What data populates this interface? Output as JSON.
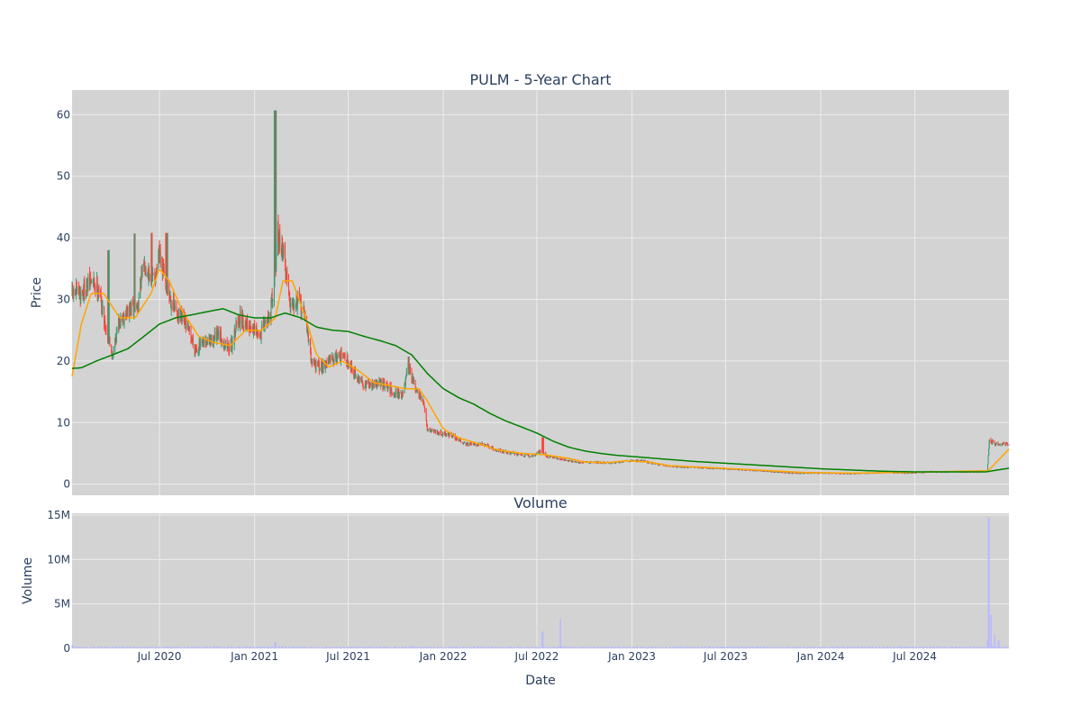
{
  "colors": {
    "plot_bg": "#d3d3d3",
    "grid": "#ececec",
    "candle_up": "#3d9970",
    "candle_down": "#ff4136",
    "ma_short": "#ffa500",
    "ma_long": "#008000",
    "volume": "#b9b9ff",
    "text": "#2a3f5f"
  },
  "chart_data": [
    {
      "type": "candlestick",
      "title": "PULM - 5-Year Chart",
      "xlabel": "",
      "ylabel": "Price",
      "xlim": [
        "2020-01-14",
        "2024-12-30"
      ],
      "ylim": [
        -1.8,
        64
      ],
      "y_ticks": [
        0,
        10,
        20,
        30,
        40,
        50,
        60
      ],
      "grid": true,
      "legend": false,
      "price_close_anchors": [
        [
          "2020-01-14",
          31
        ],
        [
          "2020-02-01",
          31
        ],
        [
          "2020-02-20",
          33
        ],
        [
          "2020-03-05",
          32
        ],
        [
          "2020-03-20",
          25
        ],
        [
          "2020-04-01",
          21
        ],
        [
          "2020-04-15",
          27
        ],
        [
          "2020-05-01",
          28
        ],
        [
          "2020-05-20",
          29
        ],
        [
          "2020-06-01",
          36
        ],
        [
          "2020-06-20",
          33
        ],
        [
          "2020-07-01",
          37
        ],
        [
          "2020-07-15",
          32
        ],
        [
          "2020-08-01",
          28
        ],
        [
          "2020-08-20",
          26
        ],
        [
          "2020-09-10",
          22
        ],
        [
          "2020-10-01",
          23
        ],
        [
          "2020-10-25",
          24
        ],
        [
          "2020-11-15",
          22
        ],
        [
          "2020-12-01",
          27
        ],
        [
          "2020-12-20",
          26
        ],
        [
          "2021-01-10",
          24
        ],
        [
          "2021-02-01",
          28
        ],
        [
          "2021-02-15",
          40
        ],
        [
          "2021-02-25",
          38
        ],
        [
          "2021-03-10",
          30
        ],
        [
          "2021-03-25",
          30
        ],
        [
          "2021-04-10",
          27
        ],
        [
          "2021-04-20",
          20
        ],
        [
          "2021-05-05",
          19
        ],
        [
          "2021-05-25",
          20
        ],
        [
          "2021-06-15",
          21
        ],
        [
          "2021-07-01",
          20
        ],
        [
          "2021-07-20",
          17
        ],
        [
          "2021-08-10",
          16
        ],
        [
          "2021-09-01",
          16.5
        ],
        [
          "2021-09-25",
          15
        ],
        [
          "2021-10-15",
          14.5
        ],
        [
          "2021-10-25",
          19
        ],
        [
          "2021-11-10",
          15
        ],
        [
          "2021-11-25",
          13
        ],
        [
          "2021-12-01",
          9
        ],
        [
          "2021-12-20",
          8.5
        ],
        [
          "2022-01-15",
          8
        ],
        [
          "2022-02-15",
          6.5
        ],
        [
          "2022-03-15",
          6.5
        ],
        [
          "2022-04-15",
          5.5
        ],
        [
          "2022-05-20",
          5
        ],
        [
          "2022-06-20",
          4.5
        ],
        [
          "2022-07-10",
          5.5
        ],
        [
          "2022-07-20",
          4.5
        ],
        [
          "2022-08-20",
          4
        ],
        [
          "2022-09-20",
          3.5
        ],
        [
          "2022-10-20",
          3.6
        ],
        [
          "2022-11-20",
          3.4
        ],
        [
          "2022-12-20",
          3.8
        ],
        [
          "2023-01-20",
          3.8
        ],
        [
          "2023-02-20",
          3.2
        ],
        [
          "2023-03-20",
          2.9
        ],
        [
          "2023-05-01",
          2.7
        ],
        [
          "2023-07-01",
          2.5
        ],
        [
          "2023-09-01",
          2.2
        ],
        [
          "2023-11-01",
          1.8
        ],
        [
          "2024-01-01",
          1.8
        ],
        [
          "2024-03-01",
          1.7
        ],
        [
          "2024-05-01",
          1.9
        ],
        [
          "2024-06-15",
          1.8
        ],
        [
          "2024-08-01",
          2
        ],
        [
          "2024-10-01",
          2
        ],
        [
          "2024-11-18",
          2.1
        ],
        [
          "2024-11-22",
          7
        ],
        [
          "2024-12-05",
          6.5
        ],
        [
          "2024-12-30",
          6.5
        ]
      ],
      "spikes": [
        {
          "date": "2021-02-10",
          "high": 60.7
        },
        {
          "date": "2020-03-24",
          "high": 38
        },
        {
          "date": "2020-05-15",
          "high": 40.7
        },
        {
          "date": "2020-06-15",
          "high": 40.8
        },
        {
          "date": "2020-07-15",
          "high": 40.8
        },
        {
          "date": "2021-10-25",
          "high": 20.7
        },
        {
          "date": "2022-07-12",
          "high": 7.6
        }
      ],
      "ma_short": [
        [
          "2020-01-14",
          17.5
        ],
        [
          "2020-02-01",
          26
        ],
        [
          "2020-02-20",
          31
        ],
        [
          "2020-03-15",
          31
        ],
        [
          "2020-04-15",
          27
        ],
        [
          "2020-05-15",
          27
        ],
        [
          "2020-06-15",
          31
        ],
        [
          "2020-07-01",
          35
        ],
        [
          "2020-07-20",
          33
        ],
        [
          "2020-08-15",
          28
        ],
        [
          "2020-09-15",
          24
        ],
        [
          "2020-10-15",
          23
        ],
        [
          "2020-11-15",
          22.5
        ],
        [
          "2020-12-15",
          25
        ],
        [
          "2021-01-15",
          25
        ],
        [
          "2021-02-10",
          27
        ],
        [
          "2021-02-25",
          33
        ],
        [
          "2021-03-15",
          33
        ],
        [
          "2021-04-10",
          27
        ],
        [
          "2021-05-01",
          21
        ],
        [
          "2021-05-25",
          19
        ],
        [
          "2021-06-20",
          20
        ],
        [
          "2021-07-20",
          18.5
        ],
        [
          "2021-08-20",
          16.5
        ],
        [
          "2021-09-20",
          16
        ],
        [
          "2021-10-20",
          15.5
        ],
        [
          "2021-11-15",
          15.5
        ],
        [
          "2021-12-01",
          13.5
        ],
        [
          "2022-01-01",
          9
        ],
        [
          "2022-02-01",
          7.5
        ],
        [
          "2022-03-01",
          6.8
        ],
        [
          "2022-04-15",
          5.6
        ],
        [
          "2022-06-01",
          5
        ],
        [
          "2022-07-15",
          4.8
        ],
        [
          "2022-09-01",
          4.2
        ],
        [
          "2022-10-01",
          3.6
        ],
        [
          "2022-11-15",
          3.5
        ],
        [
          "2022-12-20",
          3.8
        ],
        [
          "2023-02-01",
          3.6
        ],
        [
          "2023-03-15",
          3
        ],
        [
          "2023-06-01",
          2.7
        ],
        [
          "2023-09-01",
          2.3
        ],
        [
          "2023-12-01",
          1.9
        ],
        [
          "2024-03-01",
          1.8
        ],
        [
          "2024-06-01",
          1.9
        ],
        [
          "2024-08-01",
          2
        ],
        [
          "2024-11-20",
          2.2
        ],
        [
          "2024-12-30",
          5.7
        ]
      ],
      "ma_long": [
        [
          "2020-01-14",
          18.8
        ],
        [
          "2020-02-01",
          18.9
        ],
        [
          "2020-03-01",
          20
        ],
        [
          "2020-04-01",
          21
        ],
        [
          "2020-05-01",
          22
        ],
        [
          "2020-06-01",
          24
        ],
        [
          "2020-07-01",
          26
        ],
        [
          "2020-08-01",
          27
        ],
        [
          "2020-09-01",
          27.5
        ],
        [
          "2020-10-01",
          28
        ],
        [
          "2020-11-01",
          28.5
        ],
        [
          "2020-12-01",
          27.5
        ],
        [
          "2021-01-01",
          27
        ],
        [
          "2021-02-01",
          27
        ],
        [
          "2021-03-01",
          27.8
        ],
        [
          "2021-04-01",
          27
        ],
        [
          "2021-05-01",
          25.5
        ],
        [
          "2021-06-01",
          25
        ],
        [
          "2021-07-01",
          24.8
        ],
        [
          "2021-08-01",
          24
        ],
        [
          "2021-09-01",
          23.3
        ],
        [
          "2021-10-01",
          22.5
        ],
        [
          "2021-11-01",
          21
        ],
        [
          "2021-12-01",
          18
        ],
        [
          "2022-01-01",
          15.5
        ],
        [
          "2022-02-01",
          14
        ],
        [
          "2022-03-01",
          13
        ],
        [
          "2022-04-01",
          11.5
        ],
        [
          "2022-05-01",
          10.3
        ],
        [
          "2022-06-01",
          9.3
        ],
        [
          "2022-07-01",
          8.3
        ],
        [
          "2022-08-01",
          7
        ],
        [
          "2022-09-01",
          6
        ],
        [
          "2022-10-01",
          5.4
        ],
        [
          "2022-11-01",
          5
        ],
        [
          "2022-12-01",
          4.7
        ],
        [
          "2023-01-01",
          4.5
        ],
        [
          "2023-03-01",
          4.1
        ],
        [
          "2023-05-01",
          3.7
        ],
        [
          "2023-07-01",
          3.4
        ],
        [
          "2023-09-01",
          3.1
        ],
        [
          "2023-11-01",
          2.8
        ],
        [
          "2024-01-01",
          2.5
        ],
        [
          "2024-03-01",
          2.3
        ],
        [
          "2024-05-01",
          2.1
        ],
        [
          "2024-07-01",
          2
        ],
        [
          "2024-09-01",
          2
        ],
        [
          "2024-11-15",
          2
        ],
        [
          "2024-12-30",
          2.6
        ]
      ]
    },
    {
      "type": "bar",
      "title": "Volume",
      "xlabel": "Date",
      "ylabel": "Volume",
      "xlim": [
        "2020-01-14",
        "2024-12-30"
      ],
      "ylim": [
        0,
        15200000
      ],
      "y_ticks": [
        0,
        5000000,
        10000000,
        15000000
      ],
      "y_tick_labels": [
        "0",
        "5M",
        "10M",
        "15M"
      ],
      "x_ticks": [
        "2020-07-01",
        "2021-01-01",
        "2021-07-01",
        "2022-01-01",
        "2022-07-01",
        "2023-01-01",
        "2023-07-01",
        "2024-01-01",
        "2024-07-01"
      ],
      "x_tick_labels": [
        "Jul 2020",
        "Jan 2021",
        "Jul 2021",
        "Jan 2022",
        "Jul 2022",
        "Jan 2023",
        "Jul 2023",
        "Jan 2024",
        "Jul 2024"
      ],
      "grid": true,
      "volume_peaks": [
        [
          "2020-01-15",
          400000
        ],
        [
          "2021-02-10",
          700000
        ],
        [
          "2021-11-01",
          300000
        ],
        [
          "2022-07-12",
          1900000
        ],
        [
          "2022-08-15",
          3300000
        ],
        [
          "2024-11-21",
          14700000
        ],
        [
          "2024-11-25",
          3800000
        ],
        [
          "2024-12-02",
          1500000
        ],
        [
          "2024-12-10",
          900000
        ]
      ]
    }
  ]
}
